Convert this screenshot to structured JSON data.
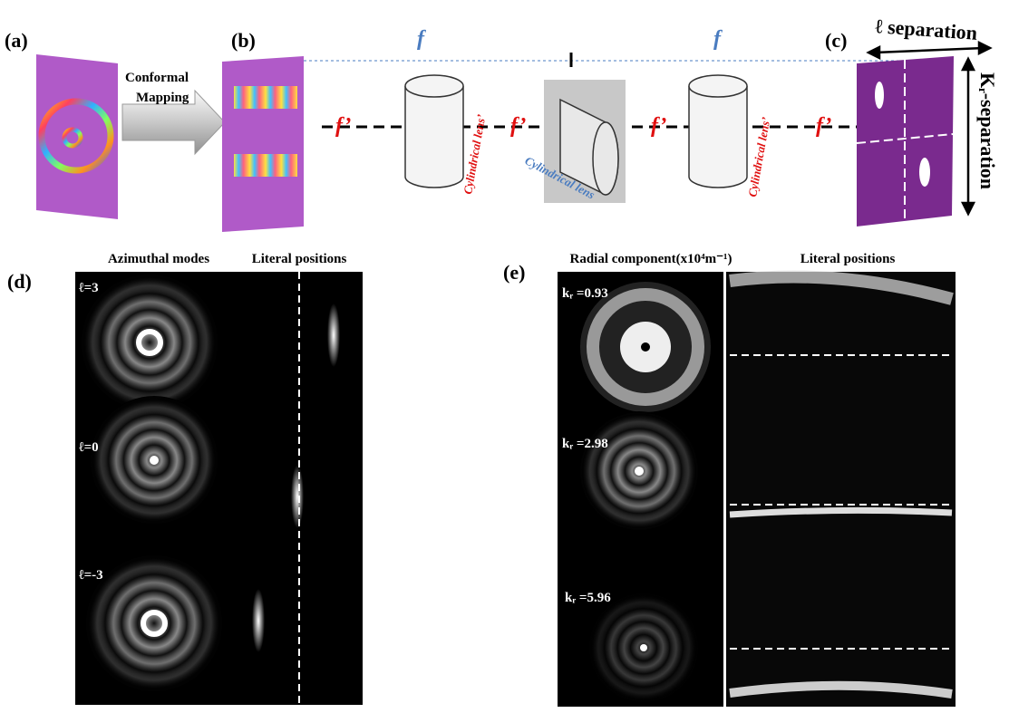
{
  "labels": [
    "(a)",
    "(b)",
    "(c)",
    "(d)",
    "(e)"
  ],
  "setup": {
    "mapping": [
      "Conformal",
      "Mapping"
    ],
    "focal_labels": [
      "f",
      "f"
    ],
    "focal_prime_labels": [
      "f’",
      "f’",
      "f’",
      "f’"
    ],
    "red_lens_labels": [
      "Cylindrical lens’",
      "Cylindrical lens’"
    ],
    "blue_lens_label": "Cylindrical lens",
    "l_separation": "ℓ separation",
    "k_separation": "Kᵣ-separation"
  },
  "panel_d": {
    "headers": [
      "Azimuthal  modes",
      "Literal positions"
    ],
    "modes": [
      "ℓ=3",
      "ℓ=0",
      "ℓ=-3"
    ]
  },
  "panel_e": {
    "headers": [
      "Radial component(x10⁴m⁻¹)",
      "Literal positions"
    ],
    "kr": [
      "kᵣ =0.93",
      "kᵣ =2.98",
      "kᵣ =5.96"
    ]
  }
}
